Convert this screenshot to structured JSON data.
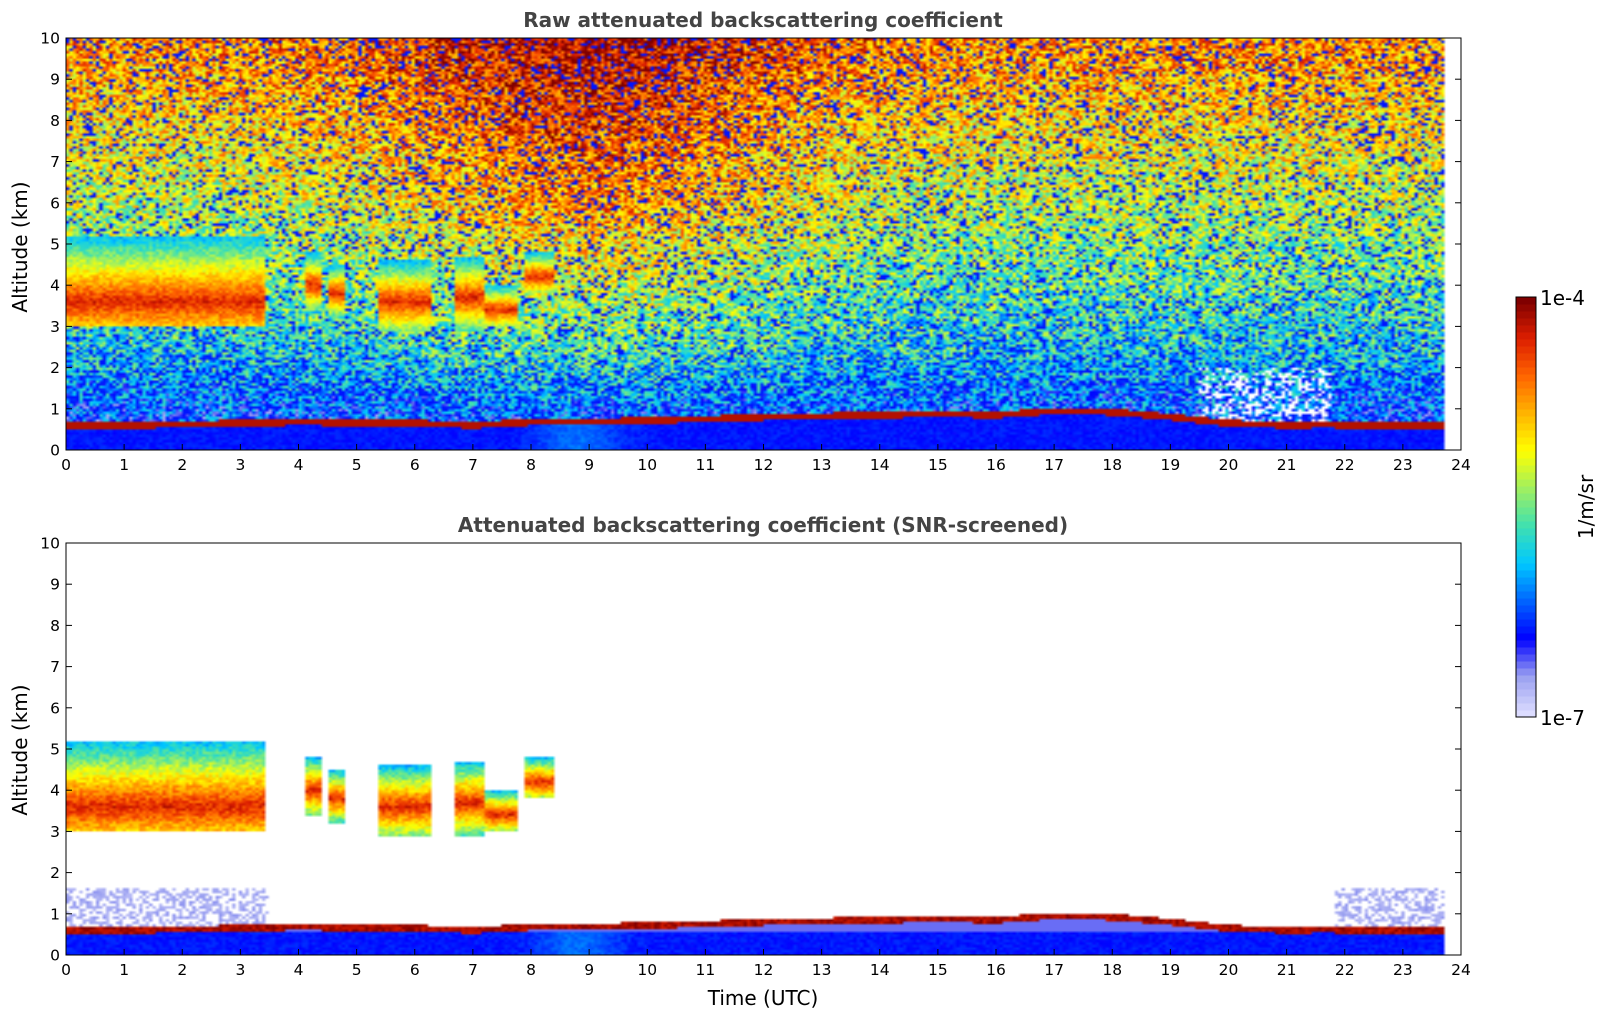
{
  "chart_data": [
    {
      "type": "heatmap",
      "title": "Raw attenuated backscattering coefficient",
      "xlabel": "",
      "ylabel": "Altitude (km)",
      "xlim": [
        0,
        24
      ],
      "ylim": [
        0,
        10
      ],
      "x_ticks": [
        "0",
        "1",
        "2",
        "3",
        "4",
        "5",
        "6",
        "7",
        "8",
        "9",
        "10",
        "11",
        "12",
        "13",
        "14",
        "15",
        "16",
        "17",
        "18",
        "19",
        "20",
        "21",
        "22",
        "23",
        "24"
      ],
      "y_ticks": [
        "0",
        "1",
        "2",
        "3",
        "4",
        "5",
        "6",
        "7",
        "8",
        "9",
        "10"
      ],
      "data_extent_hours": [
        0,
        23.7
      ],
      "screened": false,
      "features": {
        "cloud_layers": [
          {
            "start": 0.0,
            "end": 3.4,
            "base_km": 3.0,
            "top_km": 5.2,
            "peak_km": 3.6
          },
          {
            "start": 4.1,
            "end": 4.4,
            "base_km": 3.4,
            "top_km": 4.8,
            "peak_km": 4.0
          },
          {
            "start": 4.5,
            "end": 4.8,
            "base_km": 3.2,
            "top_km": 4.5,
            "peak_km": 3.8
          },
          {
            "start": 5.4,
            "end": 6.3,
            "base_km": 2.9,
            "top_km": 4.6,
            "peak_km": 3.6
          },
          {
            "start": 6.7,
            "end": 7.2,
            "base_km": 2.9,
            "top_km": 4.7,
            "peak_km": 3.7
          },
          {
            "start": 7.2,
            "end": 7.8,
            "base_km": 3.0,
            "top_km": 4.0,
            "peak_km": 3.4
          },
          {
            "start": 7.9,
            "end": 8.4,
            "base_km": 3.8,
            "top_km": 4.8,
            "peak_km": 4.2
          }
        ],
        "boundary_layer_top_km": [
          [
            0,
            0.58
          ],
          [
            2,
            0.62
          ],
          [
            4,
            0.68
          ],
          [
            6,
            0.65
          ],
          [
            7,
            0.6
          ],
          [
            8,
            0.68
          ],
          [
            9,
            0.68
          ],
          [
            10,
            0.72
          ],
          [
            11,
            0.75
          ],
          [
            12,
            0.8
          ],
          [
            13,
            0.82
          ],
          [
            14,
            0.85
          ],
          [
            15,
            0.88
          ],
          [
            16,
            0.85
          ],
          [
            17,
            0.95
          ],
          [
            18,
            0.92
          ],
          [
            19,
            0.8
          ],
          [
            20,
            0.65
          ],
          [
            21,
            0.6
          ],
          [
            21.8,
            0.62
          ]
        ]
      }
    },
    {
      "type": "heatmap",
      "title": "Attenuated backscattering coefficient (SNR-screened)",
      "xlabel": "Time (UTC)",
      "ylabel": "Altitude (km)",
      "xlim": [
        0,
        24
      ],
      "ylim": [
        0,
        10
      ],
      "x_ticks": [
        "0",
        "1",
        "2",
        "3",
        "4",
        "5",
        "6",
        "7",
        "8",
        "9",
        "10",
        "11",
        "12",
        "13",
        "14",
        "15",
        "16",
        "17",
        "18",
        "19",
        "20",
        "21",
        "22",
        "23",
        "24"
      ],
      "y_ticks": [
        "0",
        "1",
        "2",
        "3",
        "4",
        "5",
        "6",
        "7",
        "8",
        "9",
        "10"
      ],
      "data_extent_hours": [
        0,
        23.7
      ],
      "screened": true
    }
  ],
  "colorbar": {
    "min_label": "1e-7",
    "max_label": "1e-4",
    "unit_label": "1/m/sr",
    "scale": "log",
    "colors": [
      "#dcdcff",
      "#9aa0f0",
      "#0000ff",
      "#0064ff",
      "#00c8ff",
      "#40e0b0",
      "#a0f060",
      "#ffff00",
      "#ffb400",
      "#ff6400",
      "#dc1e00",
      "#800000"
    ]
  }
}
